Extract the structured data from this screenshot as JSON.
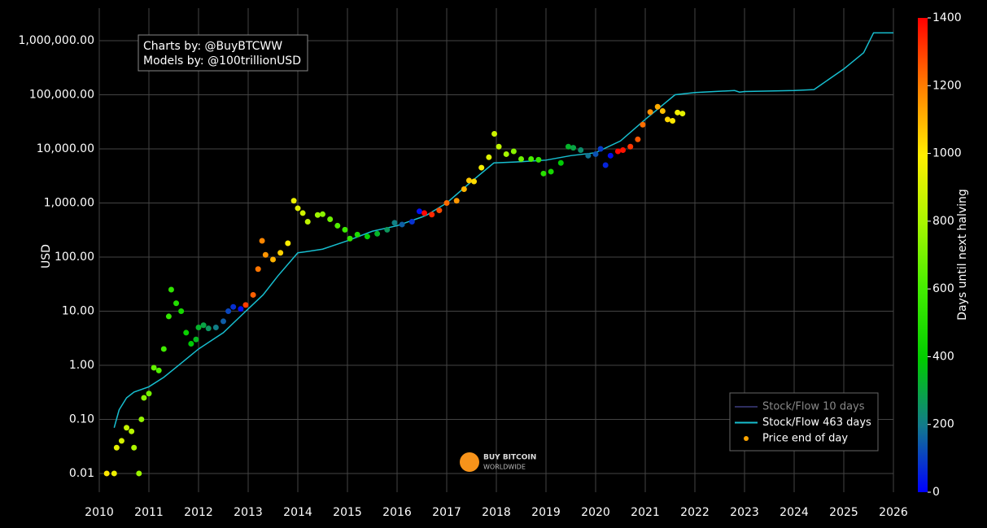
{
  "chart_data": {
    "type": "scatter",
    "annotation": [
      "Charts by: @BuyBTCWW",
      "Models by: @100trillionUSD"
    ],
    "watermark": [
      "BUY BITCOIN",
      "WORLDWIDE"
    ],
    "y_label": "USD",
    "xlim": [
      2010,
      2026
    ],
    "xticks": [
      2010,
      2011,
      2012,
      2013,
      2014,
      2015,
      2016,
      2017,
      2018,
      2019,
      2020,
      2021,
      2022,
      2023,
      2024,
      2025,
      2026
    ],
    "ylim": [
      0.0045,
      4000000
    ],
    "log_y": true,
    "yticks": [
      {
        "value": 0.01,
        "label": "0.01"
      },
      {
        "value": 0.1,
        "label": "0.10"
      },
      {
        "value": 1,
        "label": "1.00"
      },
      {
        "value": 10,
        "label": "10.00"
      },
      {
        "value": 100,
        "label": "100.00"
      },
      {
        "value": 1000,
        "label": "1,000.00"
      },
      {
        "value": 10000,
        "label": "10,000.00"
      },
      {
        "value": 100000,
        "label": "100,000.00"
      },
      {
        "value": 1000000,
        "label": "1,000,000.00"
      }
    ],
    "grid": true,
    "legend_position": "bottom-right",
    "series": [
      {
        "name": "Stock/Flow 10 days",
        "type": "line",
        "color": "#2e2e60",
        "visible": false
      },
      {
        "name": "Stock/Flow 463 days",
        "type": "line",
        "color": "#17becf",
        "x": [
          2010.3,
          2010.4,
          2010.55,
          2010.7,
          2011.0,
          2011.3,
          2011.6,
          2012.0,
          2012.5,
          2012.9,
          2013.3,
          2013.6,
          2014.0,
          2014.15,
          2014.5,
          2015.0,
          2015.5,
          2016.0,
          2016.5,
          2016.6,
          2017.0,
          2017.5,
          2017.95,
          2018.5,
          2019.0,
          2019.5,
          2020.0,
          2020.5,
          2021.0,
          2021.6,
          2022.0,
          2022.8,
          2022.9,
          2023.0,
          2024.0,
          2024.4,
          2025.0,
          2025.4,
          2025.6,
          2026.0
        ],
        "values": [
          0.07,
          0.15,
          0.25,
          0.32,
          0.4,
          0.6,
          1.0,
          2,
          4,
          9,
          20,
          45,
          120,
          125,
          140,
          200,
          300,
          380,
          550,
          600,
          1000,
          2500,
          5500,
          5800,
          6200,
          7500,
          8500,
          14000,
          35000,
          100000,
          110000,
          120000,
          112000,
          115000,
          120000,
          125000,
          300000,
          600000,
          1400000,
          1400000
        ]
      },
      {
        "name": "Price end of day",
        "type": "scatter",
        "color": "#ffa500",
        "x": [
          2010.15,
          2010.3,
          2010.35,
          2010.45,
          2010.55,
          2010.65,
          2010.7,
          2010.8,
          2010.85,
          2010.9,
          2011.0,
          2011.1,
          2011.2,
          2011.3,
          2011.4,
          2011.45,
          2011.55,
          2011.65,
          2011.75,
          2011.85,
          2011.95,
          2012.0,
          2012.1,
          2012.2,
          2012.35,
          2012.5,
          2012.6,
          2012.7,
          2012.85,
          2012.95,
          2013.1,
          2013.2,
          2013.28,
          2013.35,
          2013.5,
          2013.65,
          2013.8,
          2013.92,
          2014.0,
          2014.1,
          2014.2,
          2014.4,
          2014.5,
          2014.65,
          2014.8,
          2014.95,
          2015.05,
          2015.2,
          2015.4,
          2015.6,
          2015.8,
          2015.95,
          2016.1,
          2016.3,
          2016.45,
          2016.55,
          2016.7,
          2016.85,
          2017.0,
          2017.2,
          2017.35,
          2017.45,
          2017.55,
          2017.7,
          2017.85,
          2017.96,
          2018.05,
          2018.2,
          2018.35,
          2018.5,
          2018.7,
          2018.85,
          2018.95,
          2019.1,
          2019.3,
          2019.45,
          2019.55,
          2019.7,
          2019.85,
          2020.0,
          2020.1,
          2020.2,
          2020.3,
          2020.45,
          2020.55,
          2020.7,
          2020.85,
          2020.95,
          2021.1,
          2021.25,
          2021.35,
          2021.45,
          2021.55,
          2021.65,
          2021.75
        ],
        "values": [
          0.01,
          0.01,
          0.03,
          0.04,
          0.07,
          0.06,
          0.03,
          0.01,
          0.1,
          0.25,
          0.3,
          0.9,
          0.8,
          2,
          8,
          25,
          14,
          10,
          4,
          2.5,
          3,
          5,
          5.5,
          4.8,
          5,
          6.5,
          10,
          12,
          11,
          13,
          20,
          60,
          200,
          110,
          90,
          120,
          180,
          1100,
          800,
          650,
          450,
          600,
          620,
          500,
          380,
          320,
          220,
          260,
          240,
          270,
          320,
          430,
          400,
          450,
          700,
          650,
          610,
          730,
          1000,
          1100,
          1800,
          2600,
          2500,
          4500,
          7000,
          19000,
          11000,
          8000,
          9000,
          6500,
          6500,
          6300,
          3500,
          3800,
          5500,
          11000,
          10500,
          9500,
          7500,
          8000,
          10000,
          5000,
          7500,
          9000,
          9500,
          11000,
          15000,
          28000,
          48000,
          60000,
          50000,
          35000,
          33000,
          47000,
          45000
        ],
        "days": [
          1007,
          953,
          934,
          898,
          861,
          825,
          807,
          770,
          752,
          734,
          697,
          661,
          624,
          588,
          551,
          533,
          496,
          460,
          423,
          387,
          350,
          332,
          296,
          259,
          204,
          150,
          113,
          77,
          22,
          1303,
          1248,
          1212,
          1183,
          1157,
          1102,
          1047,
          993,
          949,
          920,
          883,
          847,
          774,
          737,
          683,
          628,
          573,
          537,
          482,
          409,
          336,
          263,
          208,
          153,
          80,
          26,
          1391,
          1336,
          1281,
          1226,
          1153,
          1099,
          1062,
          1026,
          971,
          916,
          876,
          843,
          788,
          734,
          679,
          606,
          551,
          515,
          460,
          387,
          332,
          296,
          241,
          186,
          131,
          95,
          58,
          22,
          1391,
          1369,
          1314,
          1259,
          1223,
          1168,
          1113,
          1077,
          1041,
          1004,
          967,
          931
        ]
      }
    ],
    "colorbar": {
      "title": "Days until next halving",
      "lim": [
        0,
        1400
      ],
      "ticks": [
        0,
        200,
        400,
        600,
        800,
        1000,
        1200,
        1400
      ],
      "colorscale": [
        [
          0,
          "#0000ff"
        ],
        [
          0.14,
          "#127a8c"
        ],
        [
          0.28,
          "#00cc00"
        ],
        [
          0.43,
          "#44ee00"
        ],
        [
          0.57,
          "#aaf500"
        ],
        [
          0.71,
          "#ffee00"
        ],
        [
          0.86,
          "#ff7a00"
        ],
        [
          1,
          "#ff0000"
        ]
      ]
    }
  }
}
